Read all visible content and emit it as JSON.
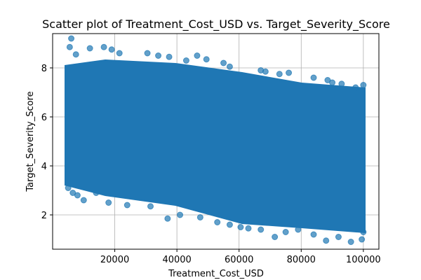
{
  "chart_data": {
    "type": "scatter",
    "title": "Scatter plot of Treatment_Cost_USD vs. Target_Severity_Score",
    "xlabel": "Treatment_Cost_USD",
    "ylabel": "Target_Severity_Score",
    "xlim": [
      0,
      105000
    ],
    "ylim": [
      0.6,
      9.4
    ],
    "xticks": [
      20000,
      40000,
      60000,
      80000,
      100000
    ],
    "yticks": [
      2,
      4,
      6,
      8
    ],
    "grid": true,
    "point_color": "#1f77b4",
    "point_alpha": 0.7,
    "series": [
      {
        "points": [
          [
            6000,
            9.2
          ],
          [
            5500,
            8.85
          ],
          [
            7500,
            8.55
          ],
          [
            12000,
            8.8
          ],
          [
            16500,
            8.85
          ],
          [
            19000,
            8.75
          ],
          [
            21500,
            8.6
          ],
          [
            30500,
            8.6
          ],
          [
            37500,
            8.45
          ],
          [
            46500,
            8.5
          ],
          [
            49500,
            8.35
          ],
          [
            55000,
            8.2
          ],
          [
            57000,
            8.05
          ],
          [
            67000,
            7.9
          ],
          [
            68500,
            7.85
          ],
          [
            73000,
            7.75
          ],
          [
            76000,
            7.8
          ],
          [
            84000,
            7.6
          ],
          [
            90000,
            7.4
          ],
          [
            93000,
            7.35
          ],
          [
            97500,
            7.2
          ],
          [
            100000,
            7.3
          ],
          [
            5000,
            3.1
          ],
          [
            6500,
            2.9
          ],
          [
            8000,
            2.8
          ],
          [
            10000,
            2.6
          ],
          [
            14000,
            2.9
          ],
          [
            18000,
            2.5
          ],
          [
            24000,
            2.4
          ],
          [
            31500,
            2.35
          ],
          [
            37000,
            1.85
          ],
          [
            41000,
            2.0
          ],
          [
            47500,
            1.9
          ],
          [
            53000,
            1.7
          ],
          [
            57000,
            1.6
          ],
          [
            60500,
            1.5
          ],
          [
            63000,
            1.45
          ],
          [
            67000,
            1.4
          ],
          [
            71500,
            1.1
          ],
          [
            75000,
            1.3
          ],
          [
            79000,
            1.4
          ],
          [
            84000,
            1.2
          ],
          [
            88000,
            0.95
          ],
          [
            92000,
            1.1
          ],
          [
            96000,
            0.9
          ],
          [
            99500,
            1.0
          ],
          [
            100000,
            1.3
          ],
          [
            88500,
            7.5
          ],
          [
            43000,
            8.3
          ],
          [
            34000,
            8.5
          ]
        ]
      }
    ]
  }
}
